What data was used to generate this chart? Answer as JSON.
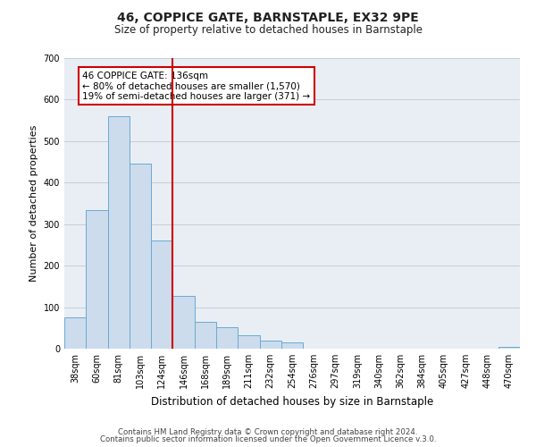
{
  "title": "46, COPPICE GATE, BARNSTAPLE, EX32 9PE",
  "subtitle": "Size of property relative to detached houses in Barnstaple",
  "xlabel": "Distribution of detached houses by size in Barnstaple",
  "ylabel": "Number of detached properties",
  "categories": [
    "38sqm",
    "60sqm",
    "81sqm",
    "103sqm",
    "124sqm",
    "146sqm",
    "168sqm",
    "189sqm",
    "211sqm",
    "232sqm",
    "254sqm",
    "276sqm",
    "297sqm",
    "319sqm",
    "340sqm",
    "362sqm",
    "384sqm",
    "405sqm",
    "427sqm",
    "448sqm",
    "470sqm"
  ],
  "values": [
    75,
    333,
    560,
    446,
    260,
    127,
    65,
    52,
    32,
    20,
    15,
    0,
    0,
    0,
    0,
    0,
    0,
    0,
    0,
    0,
    5
  ],
  "bar_color": "#ccdcec",
  "bar_edge_color": "#6aaad4",
  "vline_x": 4.5,
  "vline_color": "#cc0000",
  "ylim": [
    0,
    700
  ],
  "yticks": [
    0,
    100,
    200,
    300,
    400,
    500,
    600,
    700
  ],
  "annotation_title": "46 COPPICE GATE: 136sqm",
  "annotation_line1": "← 80% of detached houses are smaller (1,570)",
  "annotation_line2": "19% of semi-detached houses are larger (371) →",
  "annotation_box_color": "#ffffff",
  "annotation_box_edge_color": "#cc0000",
  "footer1": "Contains HM Land Registry data © Crown copyright and database right 2024.",
  "footer2": "Contains public sector information licensed under the Open Government Licence v.3.0.",
  "plot_bg_color": "#e8eef4",
  "fig_bg_color": "#ffffff",
  "grid_color": "#c5cdd5",
  "title_fontsize": 10,
  "subtitle_fontsize": 8.5,
  "ylabel_fontsize": 8,
  "xlabel_fontsize": 8.5,
  "tick_fontsize": 7,
  "footer_fontsize": 6.2,
  "ann_fontsize": 7.5
}
